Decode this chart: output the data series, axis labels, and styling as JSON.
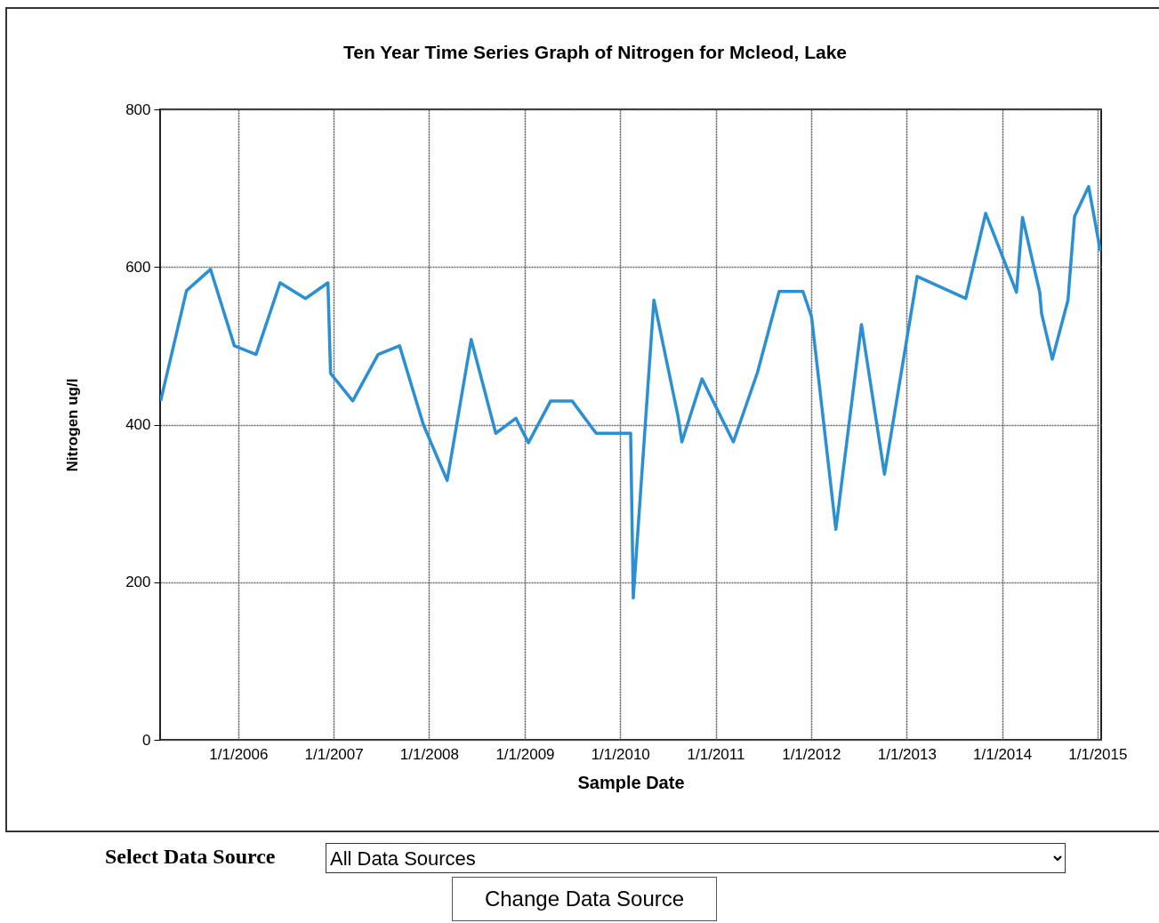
{
  "chart_data": {
    "type": "line",
    "title": "Ten Year Time Series Graph of Nitrogen for Mcleod, Lake",
    "xlabel": "Sample Date",
    "ylabel": "Nitrogen ug/l",
    "x": [
      "2005-03-10",
      "2005-06-17",
      "2005-09-17",
      "2005-12-17",
      "2006-03-10",
      "2006-06-10",
      "2006-09-15",
      "2006-12-10",
      "2006-12-20",
      "2007-03-15",
      "2007-06-20",
      "2007-09-10",
      "2007-12-10",
      "2008-03-10",
      "2008-06-10",
      "2008-09-12",
      "2008-11-28",
      "2009-01-15",
      "2009-04-10",
      "2009-07-01",
      "2009-10-01",
      "2010-02-10",
      "2010-02-20",
      "2010-05-10",
      "2010-08-10",
      "2010-08-25",
      "2010-11-10",
      "2011-03-10",
      "2011-06-10",
      "2011-09-01",
      "2011-12-01",
      "2012-01-03",
      "2012-04-05",
      "2012-07-12",
      "2012-10-08",
      "2013-02-10",
      "2013-08-15",
      "2013-10-30",
      "2014-02-25",
      "2014-03-20",
      "2014-05-25",
      "2014-06-01",
      "2014-07-12",
      "2014-09-10",
      "2014-10-05",
      "2014-11-28",
      "2015-01-12"
    ],
    "series": [
      {
        "color": "#2b8fd3",
        "values": [
          430,
          570,
          597,
          500,
          489,
          580,
          560,
          580,
          465,
          430,
          489,
          500,
          400,
          329,
          508,
          389,
          408,
          377,
          430,
          430,
          389,
          389,
          180,
          558,
          411,
          378,
          458,
          378,
          466,
          569,
          569,
          537,
          267,
          527,
          337,
          588,
          560,
          668,
          568,
          663,
          568,
          541,
          483,
          558,
          664,
          702,
          620
        ]
      }
    ],
    "xlim": [
      "2005-03-08",
      "2015-01-15"
    ],
    "xticks": [
      {
        "value": "2006-01-01",
        "label": "1/1/2006"
      },
      {
        "value": "2007-01-01",
        "label": "1/1/2007"
      },
      {
        "value": "2008-01-01",
        "label": "1/1/2008"
      },
      {
        "value": "2009-01-01",
        "label": "1/1/2009"
      },
      {
        "value": "2010-01-01",
        "label": "1/1/2010"
      },
      {
        "value": "2011-01-01",
        "label": "1/1/2011"
      },
      {
        "value": "2012-01-01",
        "label": "1/1/2012"
      },
      {
        "value": "2013-01-01",
        "label": "1/1/2013"
      },
      {
        "value": "2014-01-01",
        "label": "1/1/2014"
      },
      {
        "value": "2015-01-01",
        "label": "1/1/2015"
      }
    ],
    "ylim": [
      0,
      800
    ],
    "yticks": [
      0,
      200,
      400,
      600,
      800
    ],
    "grid": true,
    "marker": "none",
    "line_style": "solid",
    "annotations": [
      "Select Data Source",
      "All Data Sources",
      "Change Data Source"
    ]
  }
}
